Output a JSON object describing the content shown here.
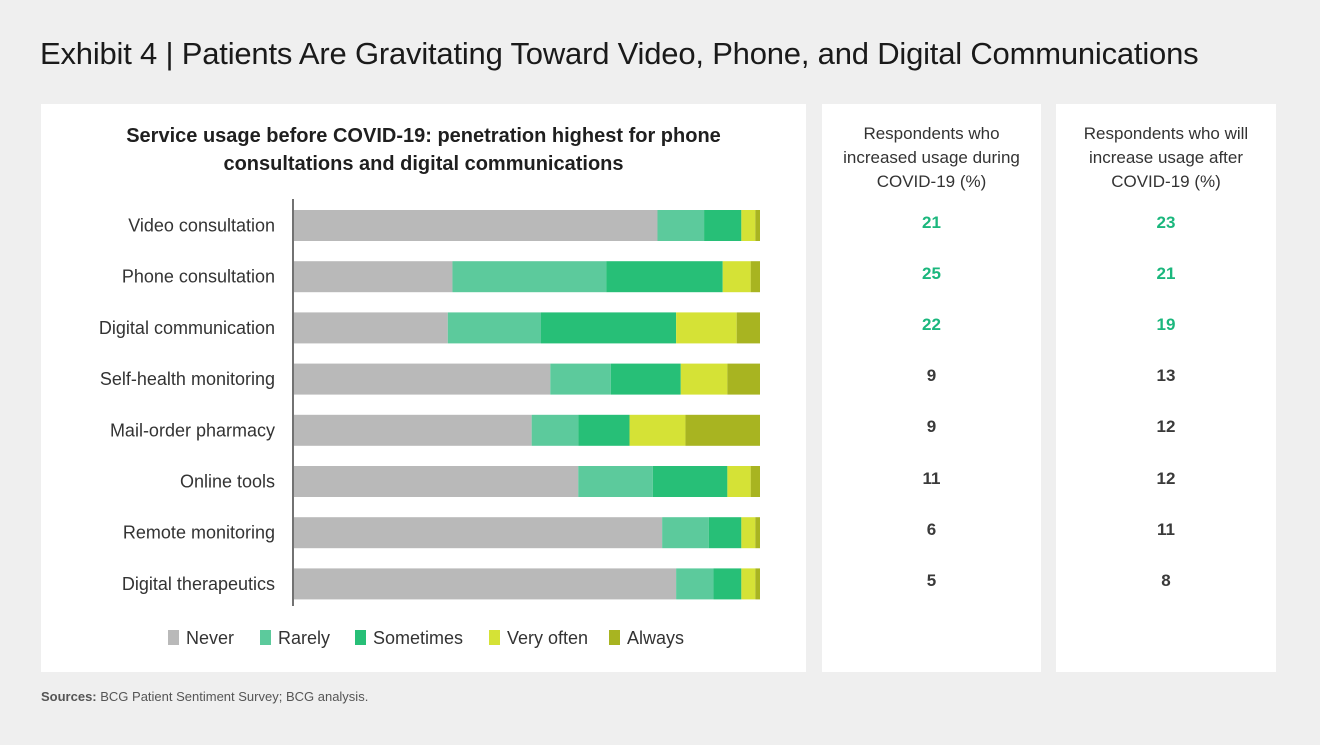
{
  "page": {
    "title": "Exhibit 4 | Patients Are Gravitating Toward Video, Phone, and Digital Communications",
    "sources_label": "Sources:",
    "sources_text": " BCG Patient Sentiment Survey; BCG analysis."
  },
  "chart_data": {
    "type": "bar",
    "orientation": "horizontal",
    "stacked": true,
    "title_lines": [
      "Service usage before COVID-19: penetration highest for phone",
      "consultations and digital communications"
    ],
    "categories": [
      "Video consultation",
      "Phone consultation",
      "Digital communication",
      "Self-health monitoring",
      "Mail-order pharmacy",
      "Online tools",
      "Remote monitoring",
      "Digital therapeutics"
    ],
    "series": [
      {
        "name": "Never",
        "color": "#b9b9b9",
        "values": [
          78,
          34,
          33,
          55,
          51,
          61,
          79,
          82
        ]
      },
      {
        "name": "Rarely",
        "color": "#5cca9c",
        "values": [
          10,
          33,
          20,
          13,
          10,
          16,
          10,
          8
        ]
      },
      {
        "name": "Sometimes",
        "color": "#27bf77",
        "values": [
          8,
          25,
          29,
          15,
          11,
          16,
          7,
          6
        ]
      },
      {
        "name": "Very often",
        "color": "#d5e236",
        "values": [
          3,
          6,
          13,
          10,
          12,
          5,
          3,
          3
        ]
      },
      {
        "name": "Always",
        "color": "#a8b421",
        "values": [
          1,
          2,
          5,
          7,
          16,
          2,
          1,
          1
        ]
      }
    ],
    "xlim": [
      0,
      100
    ],
    "legend_position": "bottom"
  },
  "columns": [
    {
      "header_lines": [
        "Respondents who",
        "increased usage during",
        "COVID-19 (%)"
      ],
      "values": [
        "21",
        "25",
        "22",
        "9",
        "9",
        "11",
        "6",
        "5"
      ],
      "highlight": [
        true,
        true,
        true,
        false,
        false,
        false,
        false,
        false
      ]
    },
    {
      "header_lines": [
        "Respondents who will",
        "increase usage after",
        "COVID-19 (%)"
      ],
      "values": [
        "23",
        "21",
        "19",
        "13",
        "12",
        "12",
        "11",
        "8"
      ],
      "highlight": [
        true,
        true,
        true,
        false,
        false,
        false,
        false,
        false
      ]
    }
  ],
  "colors": {
    "highlight": "#1bb77d",
    "normal_value": "#3a3a3a",
    "axis": "#444444"
  }
}
